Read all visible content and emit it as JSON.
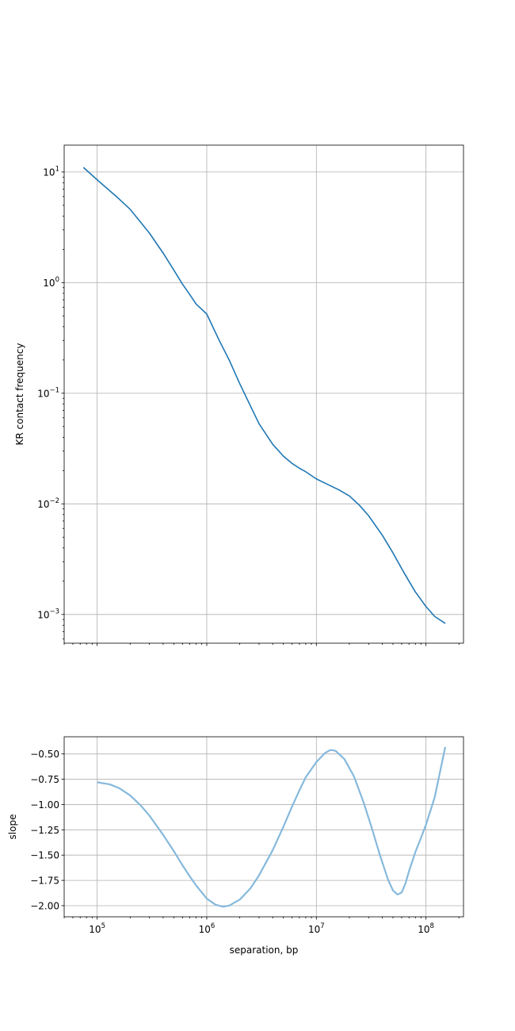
{
  "chart_data": [
    {
      "type": "line",
      "ylabel": "KR contact frequency",
      "xscale": "log",
      "yscale": "log",
      "xlim": [
        50000,
        220000000
      ],
      "ylim": [
        0.00055,
        17.5
      ],
      "grid": true,
      "colors": {
        "line": "#1f77b4"
      },
      "ytick_labels": [
        {
          "base": "10",
          "exp": "1",
          "value": 10
        },
        {
          "base": "10",
          "exp": "0",
          "value": 1
        },
        {
          "base": "10",
          "exp": "−1",
          "value": 0.1
        },
        {
          "base": "10",
          "exp": "−2",
          "value": 0.01
        },
        {
          "base": "10",
          "exp": "−3",
          "value": 0.001
        }
      ],
      "x_major_ticks": [
        100000,
        1000000,
        10000000,
        100000000
      ],
      "series": [
        {
          "x": [
            75000,
            100000,
            150000,
            200000,
            300000,
            400000,
            500000,
            600000,
            700000,
            800000,
            1000000,
            1300000,
            1600000,
            2000000,
            2500000,
            3000000,
            4000000,
            5000000,
            6000000,
            7000000,
            8000000,
            10000000,
            13000000,
            16000000,
            20000000,
            25000000,
            30000000,
            40000000,
            50000000,
            60000000,
            70000000,
            80000000,
            100000000,
            120000000,
            150000000
          ],
          "y": [
            11.0,
            8.5,
            6.0,
            4.6,
            2.8,
            1.85,
            1.3,
            0.97,
            0.78,
            0.64,
            0.52,
            0.3,
            0.2,
            0.122,
            0.077,
            0.053,
            0.0345,
            0.027,
            0.0232,
            0.021,
            0.0195,
            0.0168,
            0.0148,
            0.0134,
            0.0118,
            0.0096,
            0.0078,
            0.0052,
            0.0036,
            0.0026,
            0.002,
            0.0016,
            0.00118,
            0.00096,
            0.00083
          ]
        }
      ]
    },
    {
      "type": "line",
      "xlabel": "separation, bp",
      "ylabel": "slope",
      "xscale": "log",
      "xlim": [
        50000,
        220000000
      ],
      "ylim": [
        -2.11,
        -0.33
      ],
      "grid": true,
      "colors": {
        "line": "#86b9dc"
      },
      "yticks": [
        -0.5,
        -0.75,
        -1.0,
        -1.25,
        -1.5,
        -1.75,
        -2.0
      ],
      "ytick_labels": [
        "−0.50",
        "−0.75",
        "−1.00",
        "−1.25",
        "−1.50",
        "−1.75",
        "−2.00"
      ],
      "xtick_labels": [
        {
          "base": "10",
          "exp": "5",
          "value": 100000
        },
        {
          "base": "10",
          "exp": "6",
          "value": 1000000
        },
        {
          "base": "10",
          "exp": "7",
          "value": 10000000
        },
        {
          "base": "10",
          "exp": "8",
          "value": 100000000
        }
      ],
      "series": [
        {
          "x": [
            100000,
            130000,
            160000,
            200000,
            250000,
            300000,
            400000,
            500000,
            600000,
            700000,
            800000,
            1000000,
            1200000,
            1400000,
            1600000,
            2000000,
            2500000,
            3000000,
            4000000,
            5000000,
            6000000,
            7000000,
            8000000,
            10000000,
            12000000,
            13500000,
            15000000,
            18000000,
            22000000,
            27000000,
            32000000,
            38000000,
            45000000,
            50000000,
            55000000,
            60000000,
            65000000,
            70000000,
            80000000,
            90000000,
            100000000,
            120000000,
            150000000
          ],
          "y": [
            -0.78,
            -0.8,
            -0.84,
            -0.91,
            -1.01,
            -1.11,
            -1.3,
            -1.46,
            -1.6,
            -1.71,
            -1.8,
            -1.93,
            -1.99,
            -2.01,
            -2.0,
            -1.94,
            -1.83,
            -1.7,
            -1.45,
            -1.22,
            -1.02,
            -0.86,
            -0.73,
            -0.58,
            -0.49,
            -0.46,
            -0.47,
            -0.55,
            -0.72,
            -0.98,
            -1.23,
            -1.5,
            -1.74,
            -1.85,
            -1.89,
            -1.87,
            -1.78,
            -1.66,
            -1.47,
            -1.33,
            -1.2,
            -0.93,
            -0.43
          ]
        }
      ]
    }
  ]
}
